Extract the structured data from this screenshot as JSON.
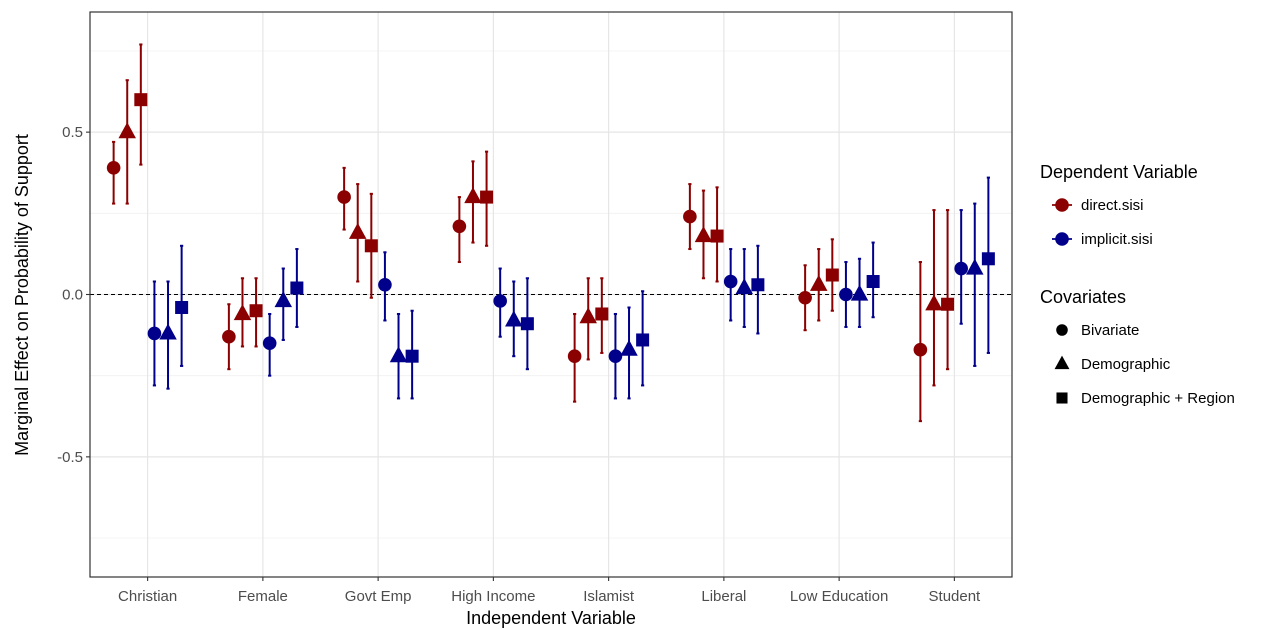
{
  "chart_data": {
    "type": "scatter",
    "subtype": "dodged point-range (coefficient plot)",
    "xlabel": "Independent Variable",
    "ylabel": "Marginal Effect on Probability of Support",
    "categories": [
      "Christian",
      "Female",
      "Govt Emp",
      "High Income",
      "Islamist",
      "Liberal",
      "Low Education",
      "Student"
    ],
    "ylim": [
      -0.87,
      0.87
    ],
    "yticks": [
      -0.5,
      0.0,
      0.5
    ],
    "ytick_labels": [
      "-0.5",
      "0.0",
      "0.5"
    ],
    "reference_line": 0,
    "grid": true,
    "legend_position": "right",
    "colors": {
      "direct.sisi": "#8b0000",
      "implicit.sisi": "#00008b"
    },
    "legends": [
      {
        "title": "Dependent Variable",
        "entries": [
          {
            "label": "direct.sisi",
            "color": "#8b0000"
          },
          {
            "label": "implicit.sisi",
            "color": "#00008b"
          }
        ]
      },
      {
        "title": "Covariates",
        "entries": [
          {
            "label": "Bivariate",
            "shape": "circle"
          },
          {
            "label": "Demographic",
            "shape": "triangle"
          },
          {
            "label": "Demographic + Region",
            "shape": "square"
          }
        ]
      }
    ],
    "series": [
      {
        "dv": "direct.sisi",
        "covariates": "Bivariate",
        "estimate": [
          0.39,
          -0.13,
          0.3,
          0.21,
          -0.19,
          0.24,
          -0.01,
          -0.17
        ],
        "lower": [
          0.28,
          -0.23,
          0.2,
          0.1,
          -0.33,
          0.14,
          -0.11,
          -0.39
        ],
        "upper": [
          0.47,
          -0.03,
          0.39,
          0.3,
          -0.06,
          0.34,
          0.09,
          0.1
        ]
      },
      {
        "dv": "direct.sisi",
        "covariates": "Demographic",
        "estimate": [
          0.5,
          -0.06,
          0.19,
          0.3,
          -0.07,
          0.18,
          0.03,
          -0.03
        ],
        "lower": [
          0.28,
          -0.16,
          0.04,
          0.16,
          -0.2,
          0.05,
          -0.08,
          -0.28
        ],
        "upper": [
          0.66,
          0.05,
          0.34,
          0.41,
          0.05,
          0.32,
          0.14,
          0.26
        ]
      },
      {
        "dv": "direct.sisi",
        "covariates": "Demographic + Region",
        "estimate": [
          0.6,
          -0.05,
          0.15,
          0.3,
          -0.06,
          0.18,
          0.06,
          -0.03
        ],
        "lower": [
          0.4,
          -0.16,
          -0.01,
          0.15,
          -0.18,
          0.04,
          -0.05,
          -0.23
        ],
        "upper": [
          0.77,
          0.05,
          0.31,
          0.44,
          0.05,
          0.33,
          0.17,
          0.26
        ]
      },
      {
        "dv": "implicit.sisi",
        "covariates": "Bivariate",
        "estimate": [
          -0.12,
          -0.15,
          0.03,
          -0.02,
          -0.19,
          0.04,
          0.0,
          0.08
        ],
        "lower": [
          -0.28,
          -0.25,
          -0.08,
          -0.13,
          -0.32,
          -0.08,
          -0.1,
          -0.09
        ],
        "upper": [
          0.04,
          -0.06,
          0.13,
          0.08,
          -0.06,
          0.14,
          0.1,
          0.26
        ]
      },
      {
        "dv": "implicit.sisi",
        "covariates": "Demographic",
        "estimate": [
          -0.12,
          -0.02,
          -0.19,
          -0.08,
          -0.17,
          0.02,
          0.0,
          0.08
        ],
        "lower": [
          -0.29,
          -0.14,
          -0.32,
          -0.19,
          -0.32,
          -0.1,
          -0.1,
          -0.22
        ],
        "upper": [
          0.04,
          0.08,
          -0.06,
          0.04,
          -0.04,
          0.14,
          0.11,
          0.28
        ]
      },
      {
        "dv": "implicit.sisi",
        "covariates": "Demographic + Region",
        "estimate": [
          -0.04,
          0.02,
          -0.19,
          -0.09,
          -0.14,
          0.03,
          0.04,
          0.11
        ],
        "lower": [
          -0.22,
          -0.1,
          -0.32,
          -0.23,
          -0.28,
          -0.12,
          -0.07,
          -0.18
        ],
        "upper": [
          0.15,
          0.14,
          -0.05,
          0.05,
          0.01,
          0.15,
          0.16,
          0.36
        ]
      }
    ]
  }
}
